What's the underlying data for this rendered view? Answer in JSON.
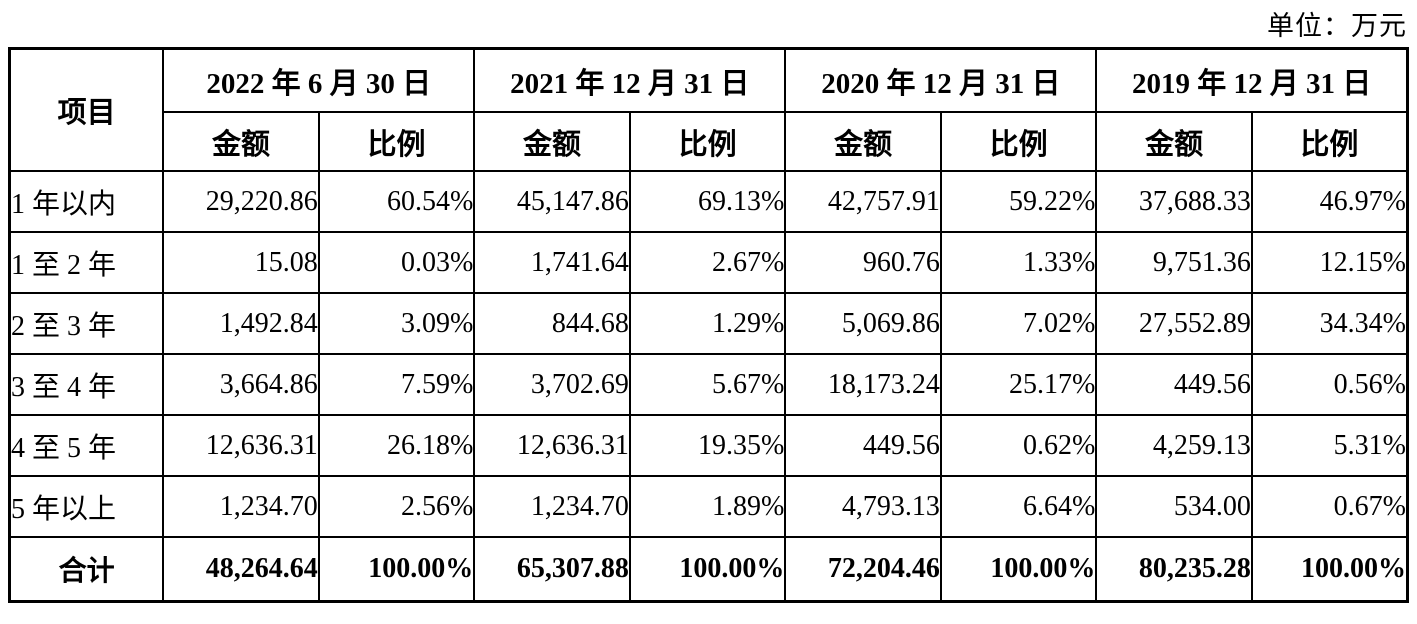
{
  "unit_label": "单位：万元",
  "table": {
    "item_header": "项目",
    "period_headers": [
      "2022 年 6 月 30 日",
      "2021 年 12 月 31 日",
      "2020 年 12 月 31 日",
      "2019 年 12 月 31 日"
    ],
    "sub_headers": {
      "amount": "金额",
      "ratio": "比例"
    },
    "rows": [
      {
        "label": "1 年以内",
        "values": [
          "29,220.86",
          "60.54%",
          "45,147.86",
          "69.13%",
          "42,757.91",
          "59.22%",
          "37,688.33",
          "46.97%"
        ]
      },
      {
        "label": "1 至 2 年",
        "values": [
          "15.08",
          "0.03%",
          "1,741.64",
          "2.67%",
          "960.76",
          "1.33%",
          "9,751.36",
          "12.15%"
        ]
      },
      {
        "label": "2 至 3 年",
        "values": [
          "1,492.84",
          "3.09%",
          "844.68",
          "1.29%",
          "5,069.86",
          "7.02%",
          "27,552.89",
          "34.34%"
        ]
      },
      {
        "label": "3 至 4 年",
        "values": [
          "3,664.86",
          "7.59%",
          "3,702.69",
          "5.67%",
          "18,173.24",
          "25.17%",
          "449.56",
          "0.56%"
        ]
      },
      {
        "label": "4 至 5 年",
        "values": [
          "12,636.31",
          "26.18%",
          "12,636.31",
          "19.35%",
          "449.56",
          "0.62%",
          "4,259.13",
          "5.31%"
        ]
      },
      {
        "label": "5 年以上",
        "values": [
          "1,234.70",
          "2.56%",
          "1,234.70",
          "1.89%",
          "4,793.13",
          "6.64%",
          "534.00",
          "0.67%"
        ]
      }
    ],
    "total_row": {
      "label": "合计",
      "values": [
        "48,264.64",
        "100.00%",
        "65,307.88",
        "100.00%",
        "72,204.46",
        "100.00%",
        "80,235.28",
        "100.00%"
      ]
    }
  }
}
